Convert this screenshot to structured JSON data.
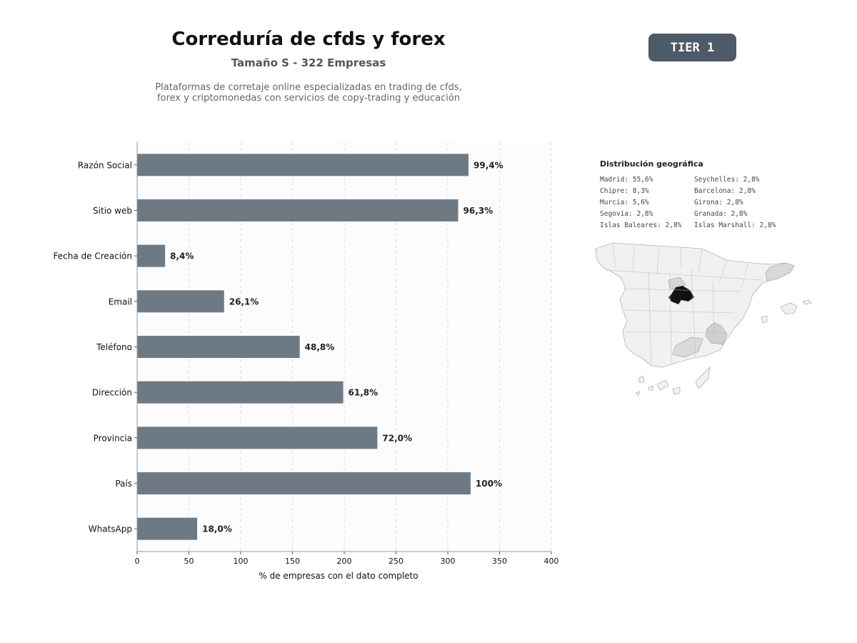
{
  "header": {
    "title": "Correduría de cfds y forex",
    "subtitle": "Tamaño S - 322 Empresas",
    "description_line1": "Plataformas de corretaje online especializadas en trading de cfds,",
    "description_line2": "forex y criptomonedas con servicios de copy-trading y educación",
    "tier_badge": "TIER 1"
  },
  "chart_data": {
    "type": "bar",
    "orientation": "horizontal",
    "categories": [
      "Razón Social",
      "Sitio web",
      "Fecha de Creación",
      "Email",
      "Teléfono",
      "Dirección",
      "Provincia",
      "País",
      "WhatsApp"
    ],
    "values": [
      320,
      310,
      27,
      84,
      157,
      199,
      232,
      322,
      58
    ],
    "data_labels": [
      "99,4%",
      "96,3%",
      "8,4%",
      "26,1%",
      "48,8%",
      "61,8%",
      "72,0%",
      "100%",
      "18,0%"
    ],
    "xlabel": "% de empresas con el dato completo",
    "xlim": [
      0,
      400
    ],
    "xticks": [
      0,
      50,
      100,
      150,
      200,
      250,
      300,
      350,
      400
    ],
    "grid": "vertical-dashed",
    "bar_color": "#6e7a83"
  },
  "geo": {
    "title": "Distribución geográfica",
    "items": [
      "Madrid: 55,6%",
      "Seychelles: 2,8%",
      "Chipre: 8,3%",
      "Barcelona: 2,8%",
      "Murcia: 5,6%",
      "Girona: 2,8%",
      "Segovia: 2,8%",
      "Granada: 2,8%",
      "Islas Baleares: 2,8%",
      "Islas Marshall: 2,8%"
    ]
  }
}
